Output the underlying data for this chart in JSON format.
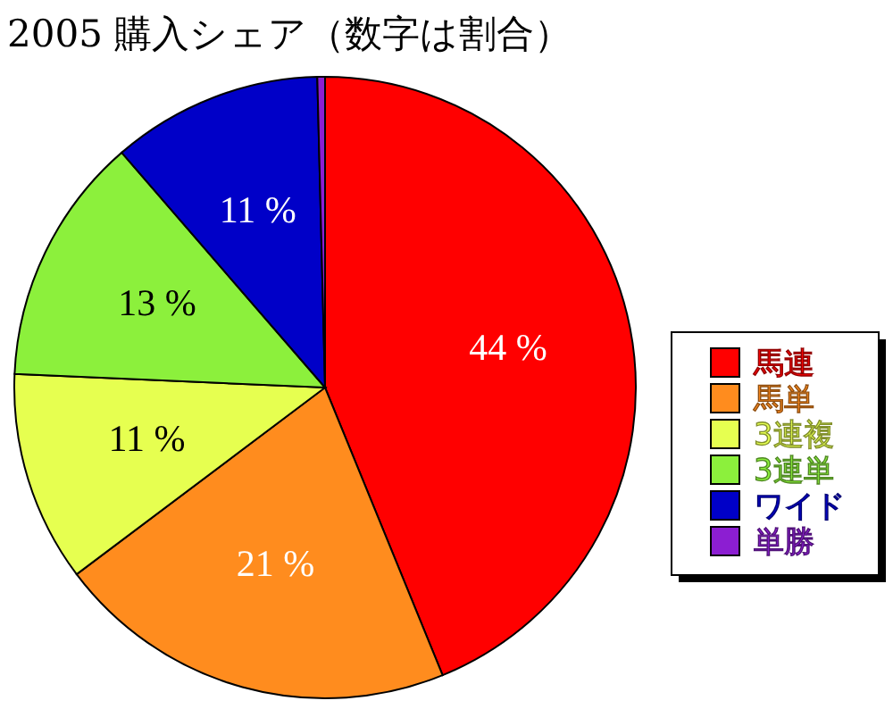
{
  "chart_data": {
    "type": "pie",
    "title": "2005 購入シェア（数字は割合）",
    "categories": [
      "馬連",
      "馬単",
      "3連複",
      "3連単",
      "ワイド",
      "単勝"
    ],
    "values": [
      44,
      21,
      11,
      13,
      11,
      0.4
    ],
    "colors": [
      "#ff0000",
      "#ff8c1e",
      "#e6ff50",
      "#8cf03c",
      "#0000c8",
      "#8c1ed2"
    ],
    "value_labels": [
      "44 %",
      "21 %",
      "11 %",
      "13 %",
      "11 %",
      null
    ],
    "legend": "right"
  }
}
